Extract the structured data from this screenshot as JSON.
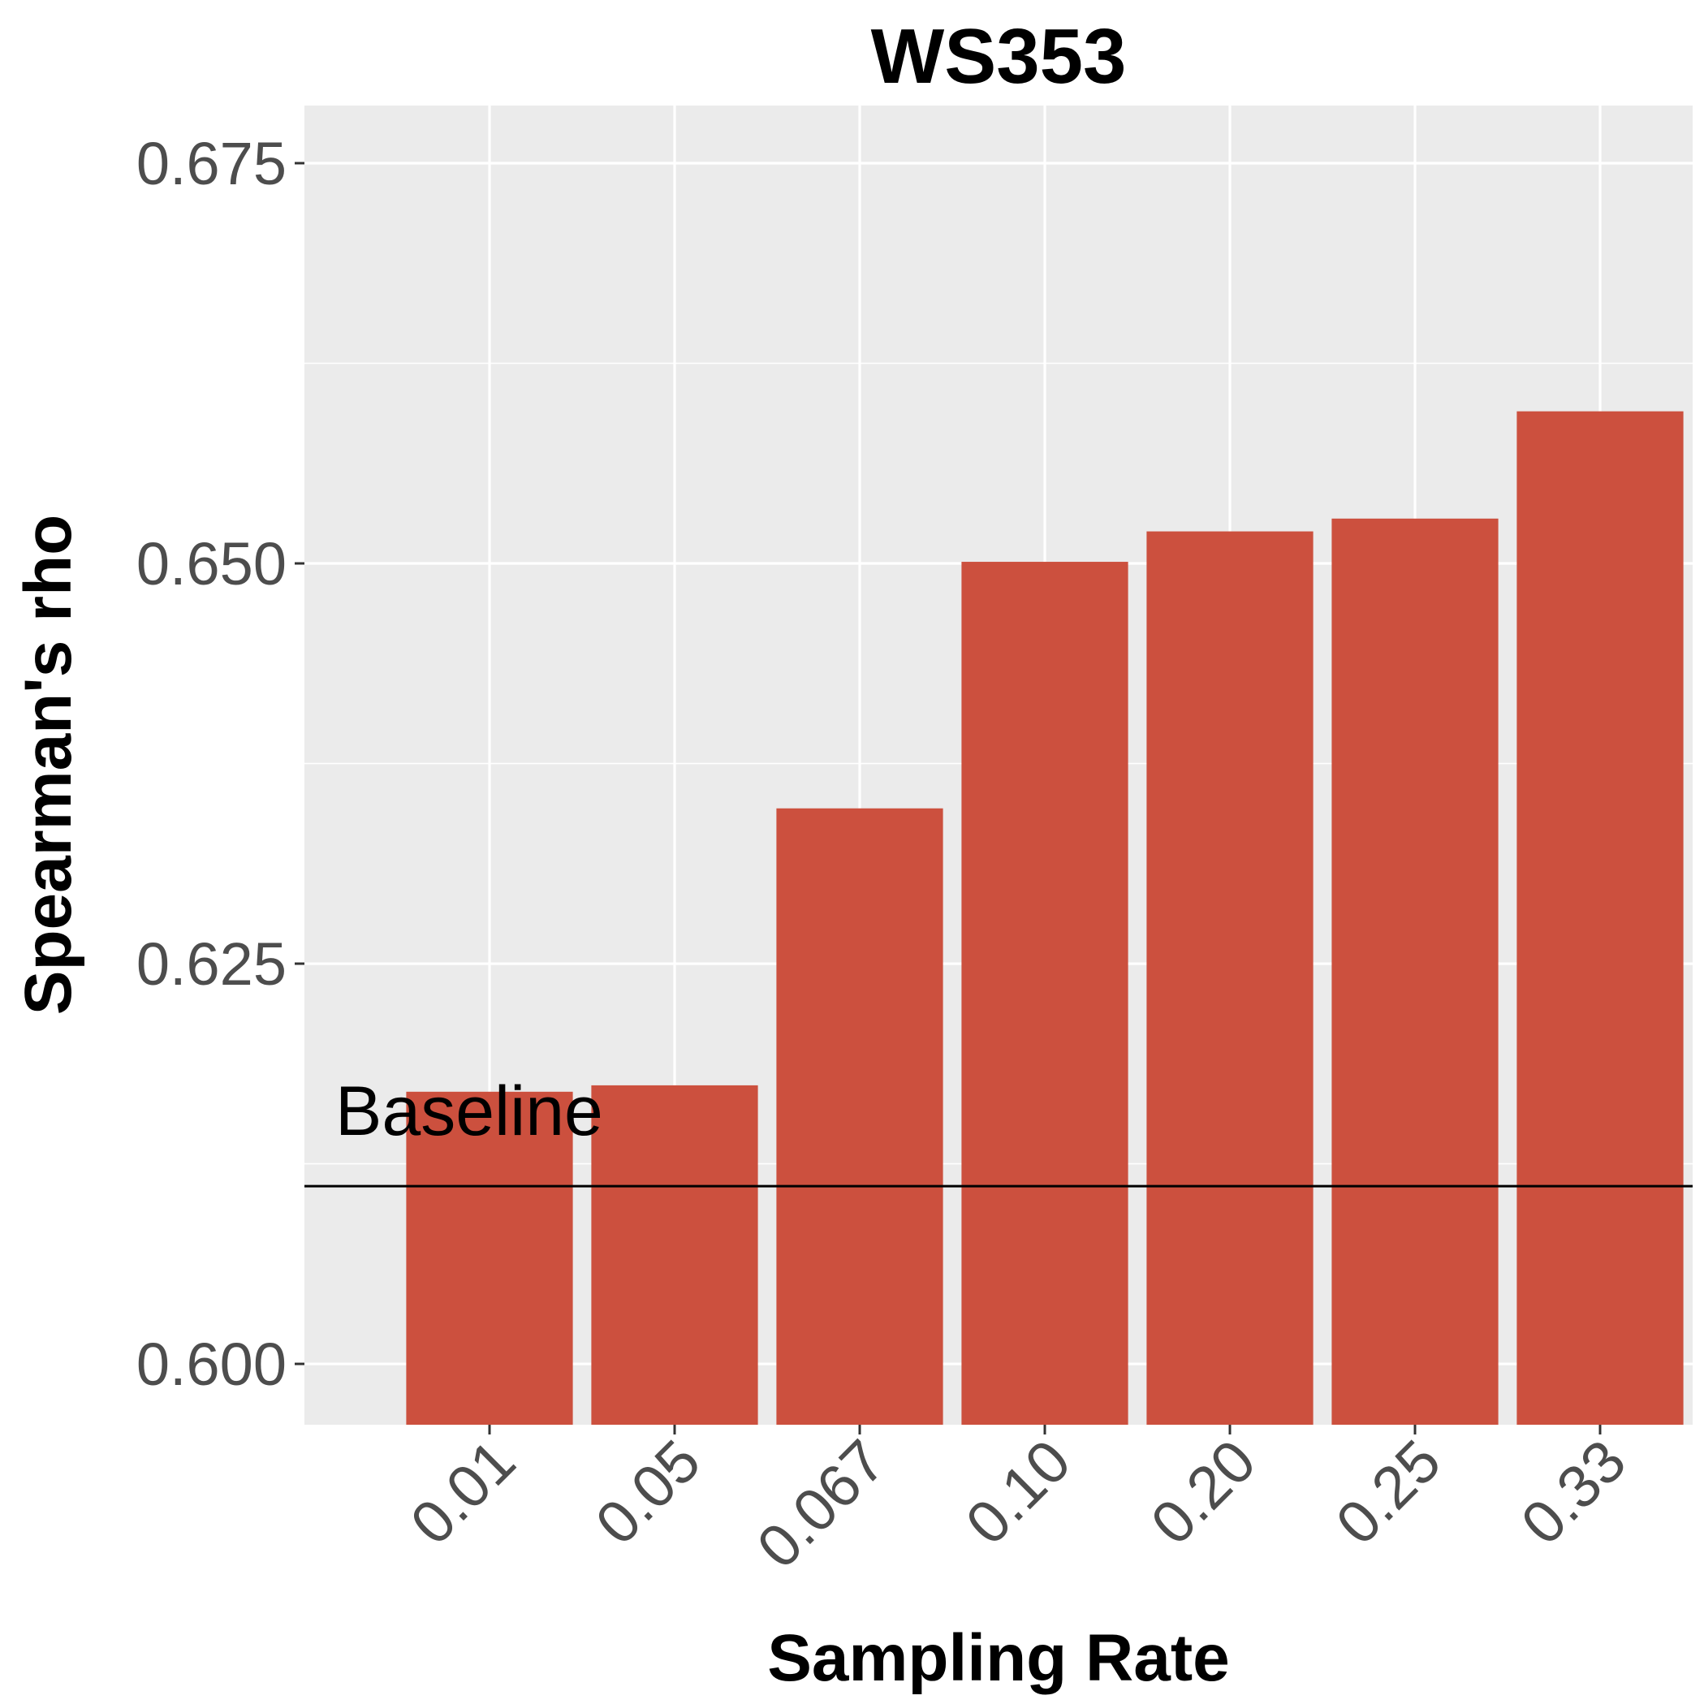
{
  "chart_data": {
    "type": "bar",
    "title": "WS353",
    "xlabel": "Sampling Rate",
    "ylabel": "Spearman's rho",
    "categories": [
      "0.01",
      "0.05",
      "0.067",
      "0.10",
      "0.20",
      "0.25",
      "0.33"
    ],
    "values": [
      0.617,
      0.6174,
      0.6347,
      0.6501,
      0.652,
      0.6528,
      0.6595
    ],
    "y_ticks": [
      "0.600",
      "0.625",
      "0.650",
      "0.675"
    ],
    "ylim": [
      0.5962,
      0.6786
    ],
    "baseline": {
      "label": "Baseline",
      "value": 0.6111
    },
    "grid": true,
    "legend": "none",
    "colors": {
      "bar": "#cc503e",
      "panel": "#ebebeb",
      "grid": "#ffffff",
      "baseline": "#000000"
    }
  }
}
